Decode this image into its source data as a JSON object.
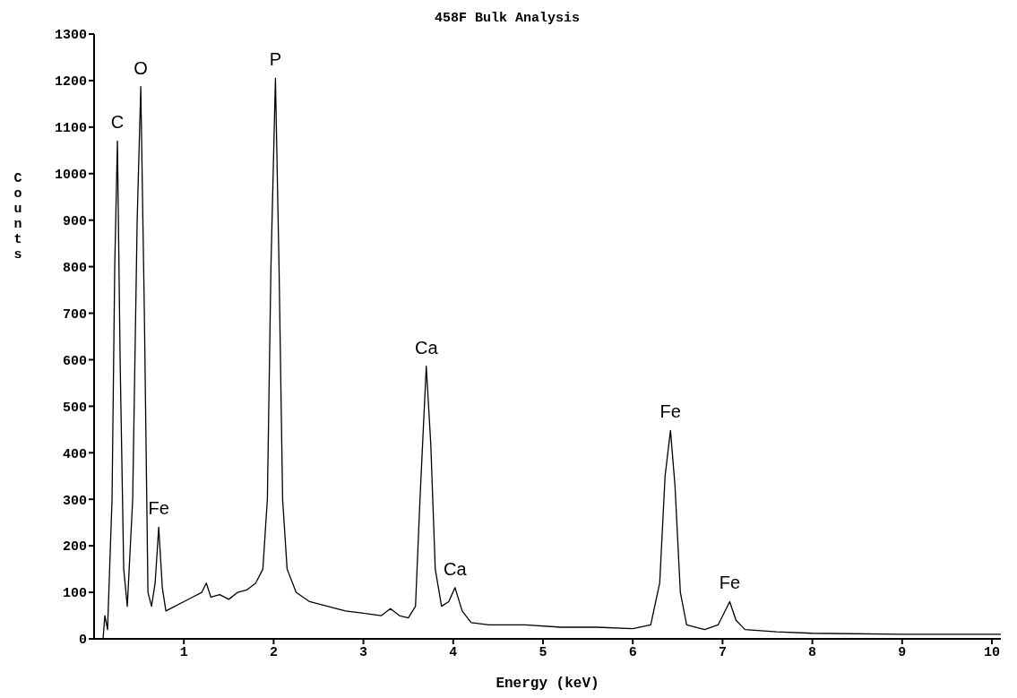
{
  "chart_data": {
    "type": "line",
    "title": "458F Bulk Analysis",
    "xlabel": "Energy (keV)",
    "ylabel": "Counts",
    "x": [
      0.1,
      0.12,
      0.15,
      0.2,
      0.23,
      0.26,
      0.29,
      0.33,
      0.37,
      0.43,
      0.48,
      0.52,
      0.56,
      0.6,
      0.64,
      0.68,
      0.72,
      0.76,
      0.8,
      0.9,
      1.0,
      1.1,
      1.2,
      1.25,
      1.3,
      1.4,
      1.5,
      1.6,
      1.7,
      1.8,
      1.88,
      1.93,
      1.97,
      2.02,
      2.06,
      2.1,
      2.15,
      2.25,
      2.4,
      2.6,
      2.8,
      3.0,
      3.2,
      3.3,
      3.4,
      3.5,
      3.58,
      3.63,
      3.7,
      3.75,
      3.8,
      3.87,
      3.95,
      4.02,
      4.1,
      4.2,
      4.4,
      4.8,
      5.2,
      5.6,
      6.0,
      6.2,
      6.3,
      6.36,
      6.42,
      6.47,
      6.53,
      6.6,
      6.8,
      6.95,
      7.08,
      7.15,
      7.25,
      7.6,
      8.0,
      9.0,
      10.0,
      10.1
    ],
    "series": [
      {
        "color": "#000000",
        "values": [
          0,
          50,
          20,
          300,
          800,
          1070,
          600,
          150,
          70,
          300,
          900,
          1187,
          700,
          100,
          70,
          120,
          240,
          110,
          60,
          70,
          80,
          90,
          100,
          120,
          90,
          95,
          85,
          100,
          105,
          120,
          150,
          300,
          800,
          1205,
          800,
          300,
          150,
          100,
          80,
          70,
          60,
          55,
          50,
          65,
          50,
          45,
          70,
          300,
          586,
          420,
          150,
          70,
          80,
          110,
          60,
          35,
          30,
          30,
          25,
          25,
          22,
          30,
          120,
          350,
          448,
          330,
          100,
          30,
          20,
          30,
          80,
          40,
          20,
          15,
          12,
          10,
          10,
          10
        ]
      }
    ],
    "xlim": [
      0,
      10.1
    ],
    "xticks": [
      1,
      2,
      3,
      4,
      5,
      6,
      7,
      8,
      9,
      10
    ],
    "ylim": [
      0,
      1300
    ],
    "yticks": [
      0,
      100,
      200,
      300,
      400,
      500,
      600,
      700,
      800,
      900,
      1000,
      1100,
      1200,
      1300
    ],
    "grid": false,
    "legend": false,
    "marker": "none",
    "line_style": "solid",
    "annotations": [
      {
        "text": "C",
        "x": 0.26,
        "y": 1070
      },
      {
        "text": "O",
        "x": 0.52,
        "y": 1187
      },
      {
        "text": "Fe",
        "x": 0.72,
        "y": 240
      },
      {
        "text": "P",
        "x": 2.02,
        "y": 1205
      },
      {
        "text": "Ca",
        "x": 3.7,
        "y": 586
      },
      {
        "text": "Ca",
        "x": 4.02,
        "y": 110
      },
      {
        "text": "Fe",
        "x": 6.42,
        "y": 448
      },
      {
        "text": "Fe",
        "x": 7.08,
        "y": 80
      }
    ]
  }
}
